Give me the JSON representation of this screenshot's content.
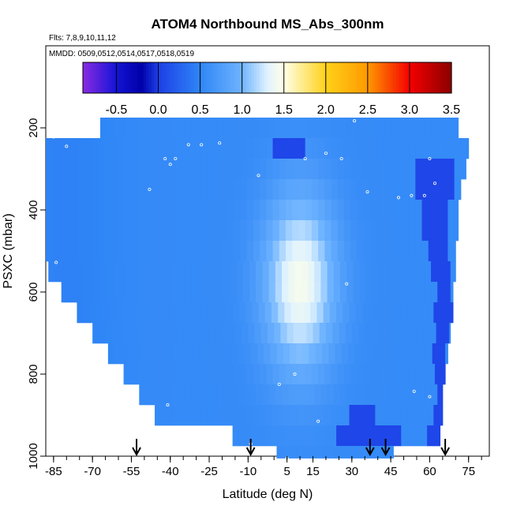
{
  "chart_data": {
    "type": "heatmap",
    "title": "ATOM4 Northbound MS_Abs_300nm",
    "flights_note": "Flts: 7,8,9,10,11,12",
    "dates_note": "MMDD: 0509,0512,0514,0517,0518,0519",
    "xlabel": "Latitude (deg N)",
    "ylabel": "PSXC (mbar)",
    "xlim": [
      -88,
      83
    ],
    "ylim": [
      1000,
      0
    ],
    "x_ticks": [
      -85,
      -70,
      -55,
      -40,
      -25,
      -10,
      5,
      15,
      30,
      45,
      60,
      75
    ],
    "x_tick_labels": [
      "-85",
      "-70",
      "-55",
      "-40",
      "-25",
      "-10",
      "5",
      "15",
      "30",
      "45",
      "60",
      "75"
    ],
    "y_ticks": [
      200,
      400,
      600,
      800,
      1000
    ],
    "y_tick_labels": [
      "200",
      "400",
      "600",
      "800",
      "1000"
    ],
    "colorbar": {
      "min": -0.9,
      "max": 3.5,
      "ticks": [
        -0.5,
        0.0,
        0.5,
        1.0,
        1.5,
        2.0,
        2.5,
        3.0,
        3.5
      ],
      "tick_labels": [
        "-0.5",
        "0.0",
        "0.5",
        "1.0",
        "1.5",
        "2.0",
        "2.5",
        "3.0",
        "3.5"
      ],
      "stops": [
        {
          "v": -0.9,
          "c": "#8a2be2"
        },
        {
          "v": -0.5,
          "c": "#1414d6"
        },
        {
          "v": -0.2,
          "c": "#0000a8"
        },
        {
          "v": 0.0,
          "c": "#1d3fe6"
        },
        {
          "v": 0.5,
          "c": "#2f86f6"
        },
        {
          "v": 1.0,
          "c": "#6fb4ff"
        },
        {
          "v": 1.3,
          "c": "#dff2ff"
        },
        {
          "v": 1.5,
          "c": "#ffffe6"
        },
        {
          "v": 2.0,
          "c": "#ffd21a"
        },
        {
          "v": 2.5,
          "c": "#ff9900"
        },
        {
          "v": 3.0,
          "c": "#f50000"
        },
        {
          "v": 3.5,
          "c": "#8b0000"
        }
      ]
    },
    "pressure_levels": [
      200,
      250,
      300,
      350,
      400,
      450,
      500,
      550,
      600,
      650,
      700,
      750,
      800,
      850,
      900,
      950,
      1000
    ],
    "bands": [
      {
        "p_top": 175,
        "p_bot": 225,
        "lat_min": -67,
        "lat_max": 71,
        "dark_lat": []
      },
      {
        "p_top": 225,
        "p_bot": 275,
        "lat_min": -88,
        "lat_max": 75,
        "dark_lat": [
          [
            0,
            12
          ]
        ]
      },
      {
        "p_top": 275,
        "p_bot": 325,
        "lat_min": -88,
        "lat_max": 74,
        "dark_lat": [
          [
            55,
            70
          ]
        ]
      },
      {
        "p_top": 325,
        "p_bot": 375,
        "lat_min": -88,
        "lat_max": 72,
        "dark_lat": [
          [
            55,
            70
          ]
        ]
      },
      {
        "p_top": 375,
        "p_bot": 425,
        "lat_min": -88,
        "lat_max": 71,
        "dark_lat": [
          [
            58,
            68
          ]
        ]
      },
      {
        "p_top": 425,
        "p_bot": 475,
        "lat_min": -88,
        "lat_max": 71,
        "dark_lat": [
          [
            58,
            68
          ]
        ]
      },
      {
        "p_top": 475,
        "p_bot": 525,
        "lat_min": -88,
        "lat_max": 70,
        "dark_lat": [
          [
            60,
            68
          ]
        ]
      },
      {
        "p_top": 525,
        "p_bot": 575,
        "lat_min": -87,
        "lat_max": 70,
        "dark_lat": [
          [
            60,
            68
          ]
        ]
      },
      {
        "p_top": 575,
        "p_bot": 625,
        "lat_min": -82,
        "lat_max": 69,
        "dark_lat": [
          [
            62,
            68
          ]
        ]
      },
      {
        "p_top": 625,
        "p_bot": 675,
        "lat_min": -76,
        "lat_max": 69,
        "dark_lat": [
          [
            62,
            68
          ]
        ]
      },
      {
        "p_top": 675,
        "p_bot": 725,
        "lat_min": -70,
        "lat_max": 68,
        "dark_lat": [
          [
            62,
            67
          ]
        ]
      },
      {
        "p_top": 725,
        "p_bot": 775,
        "lat_min": -64,
        "lat_max": 67,
        "dark_lat": [
          [
            62,
            66
          ]
        ]
      },
      {
        "p_top": 775,
        "p_bot": 825,
        "lat_min": -58,
        "lat_max": 66,
        "dark_lat": [
          [
            62,
            66
          ]
        ]
      },
      {
        "p_top": 825,
        "p_bot": 875,
        "lat_min": -52,
        "lat_max": 65,
        "dark_lat": [
          [
            62,
            65
          ]
        ]
      },
      {
        "p_top": 875,
        "p_bot": 925,
        "lat_min": -46,
        "lat_max": 65,
        "dark_lat": [
          [
            30,
            40
          ],
          [
            62,
            65
          ]
        ]
      },
      {
        "p_top": 925,
        "p_bot": 975,
        "lat_min": -16,
        "lat_max": 64,
        "dark_lat": [
          [
            25,
            50
          ],
          [
            58,
            64
          ]
        ]
      },
      {
        "p_top": 975,
        "p_bot": 1005,
        "lat_min": 1,
        "lat_max": 46,
        "dark_lat": []
      }
    ],
    "hotspot": {
      "lat_center": 10,
      "lat_width": 14,
      "p_center": 580,
      "p_width": 220,
      "peak": 1.45
    },
    "base_value": 0.55,
    "flight_arrows_lat": [
      -53,
      -9,
      37,
      43,
      66
    ],
    "sample_points": [
      {
        "lat": -71,
        "p": 190
      },
      {
        "lat": -68,
        "p": 190
      },
      {
        "lat": -85,
        "p": 222
      },
      {
        "lat": -80,
        "p": 245
      },
      {
        "lat": -42,
        "p": 275
      },
      {
        "lat": -40,
        "p": 289
      },
      {
        "lat": -38,
        "p": 275
      },
      {
        "lat": -33,
        "p": 241
      },
      {
        "lat": -28,
        "p": 241
      },
      {
        "lat": -21,
        "p": 237
      },
      {
        "lat": -6,
        "p": 316
      },
      {
        "lat": -48,
        "p": 350
      },
      {
        "lat": 12,
        "p": 275
      },
      {
        "lat": 20,
        "p": 262
      },
      {
        "lat": 26,
        "p": 275
      },
      {
        "lat": 31,
        "p": 183
      },
      {
        "lat": 36,
        "p": 356
      },
      {
        "lat": 60,
        "p": 275
      },
      {
        "lat": 62,
        "p": 335
      },
      {
        "lat": 48,
        "p": 370
      },
      {
        "lat": 53,
        "p": 365
      },
      {
        "lat": 58,
        "p": 365
      },
      {
        "lat": -84,
        "p": 528
      },
      {
        "lat": 28,
        "p": 580
      },
      {
        "lat": 5,
        "p": 1005
      },
      {
        "lat": 8,
        "p": 800
      },
      {
        "lat": 2,
        "p": 825
      },
      {
        "lat": 17,
        "p": 915
      },
      {
        "lat": -9,
        "p": 970
      },
      {
        "lat": -41,
        "p": 875
      },
      {
        "lat": 54,
        "p": 842
      },
      {
        "lat": 60,
        "p": 855
      }
    ]
  }
}
